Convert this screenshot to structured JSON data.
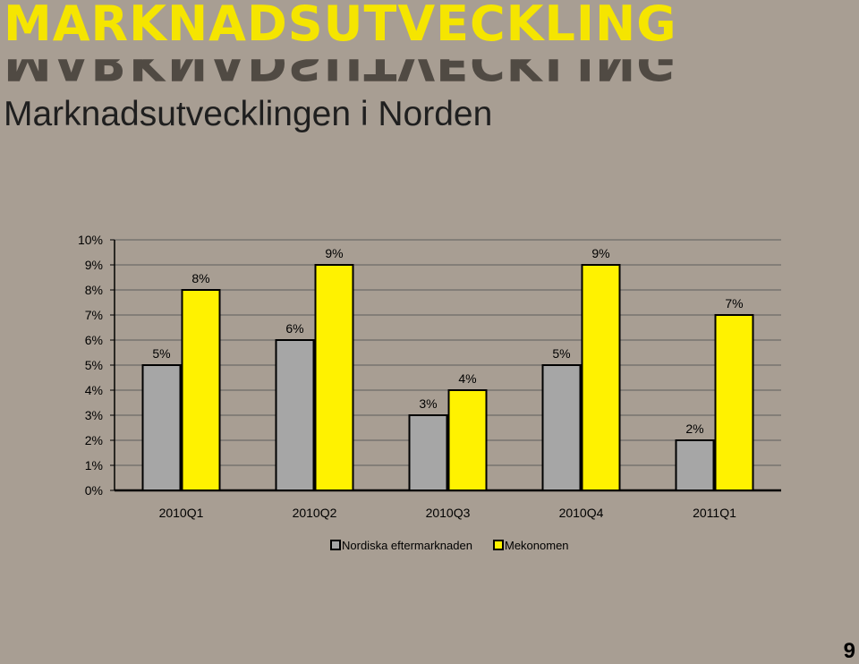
{
  "header": {
    "brand_text": "MARKNADSUTVECKLING",
    "subtitle": "Marknadsutvecklingen i Norden"
  },
  "page_number": "9",
  "colors": {
    "background": "#a89e93",
    "brand": "#f5e500",
    "series_1": "#a6a6a6",
    "series_2": "#fff200"
  },
  "chart_data": {
    "type": "bar",
    "categories": [
      "2010Q1",
      "2010Q2",
      "2010Q3",
      "2010Q4",
      "2011Q1"
    ],
    "series": [
      {
        "name": "Nordiska eftermarknaden",
        "values": [
          5,
          6,
          3,
          5,
          2
        ],
        "color": "#a6a6a6"
      },
      {
        "name": "Mekonomen",
        "values": [
          8,
          9,
          4,
          9,
          7
        ],
        "color": "#fff200"
      }
    ],
    "y_ticks": [
      "0%",
      "1%",
      "2%",
      "3%",
      "4%",
      "5%",
      "6%",
      "7%",
      "8%",
      "9%",
      "10%"
    ],
    "ylim": [
      0,
      10
    ],
    "value_suffix": "%",
    "grid": true,
    "legend_position": "bottom"
  }
}
